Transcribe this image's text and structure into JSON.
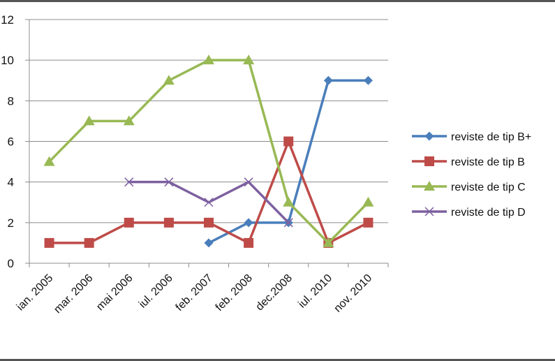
{
  "chart_data": {
    "type": "line",
    "categories": [
      "ian. 2005",
      "mar. 2006",
      "mai 2006",
      "iul. 2006",
      "feb. 2007",
      "feb. 2008",
      "dec.2008",
      "iul. 2010",
      "nov. 2010"
    ],
    "ylim": [
      0,
      12
    ],
    "yticks": [
      0,
      2,
      4,
      6,
      8,
      10,
      12
    ],
    "grid": true,
    "legend_position": "right",
    "series": [
      {
        "name": "reviste de tip B+",
        "color": "#4a7ebb",
        "marker": "diamond",
        "values": [
          null,
          null,
          null,
          null,
          1,
          2,
          2,
          9,
          9
        ]
      },
      {
        "name": "reviste de tip B",
        "color": "#be4b48",
        "marker": "square",
        "values": [
          1,
          1,
          2,
          2,
          2,
          1,
          6,
          1,
          2
        ]
      },
      {
        "name": "reviste de tip C",
        "color": "#98b954",
        "marker": "triangle",
        "values": [
          5,
          7,
          7,
          9,
          10,
          10,
          3,
          1,
          3
        ]
      },
      {
        "name": "reviste de tip D",
        "color": "#7d60a0",
        "marker": "x",
        "values": [
          null,
          null,
          4,
          4,
          3,
          4,
          2,
          null,
          null
        ]
      }
    ]
  }
}
